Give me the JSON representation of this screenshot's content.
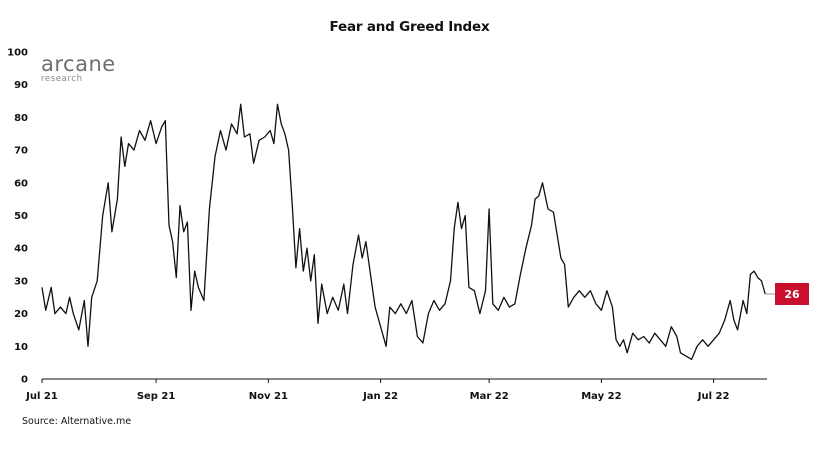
{
  "chart_data": {
    "type": "line",
    "title": "Fear and Greed Index",
    "xlabel": "",
    "ylabel": "",
    "ylim": [
      0,
      100
    ],
    "y_ticks": [
      0,
      10,
      20,
      30,
      40,
      50,
      60,
      70,
      80,
      90,
      100
    ],
    "x_ticks": [
      "Jul 21",
      "Sep 21",
      "Nov 21",
      "Jan 22",
      "Mar 22",
      "May 22",
      "Jul 22"
    ],
    "x_tick_dates": [
      "2021-07-01",
      "2021-09-01",
      "2021-11-01",
      "2022-01-01",
      "2022-03-01",
      "2022-05-01",
      "2022-07-01"
    ],
    "grid": false,
    "legend": "none",
    "line_color": "#111111",
    "last_value_label": "26",
    "badge_color": "#c8102e",
    "series": [
      {
        "points": [
          [
            "2021-07-01",
            28
          ],
          [
            "2021-07-03",
            21
          ],
          [
            "2021-07-06",
            28
          ],
          [
            "2021-07-08",
            20
          ],
          [
            "2021-07-11",
            22
          ],
          [
            "2021-07-14",
            20
          ],
          [
            "2021-07-16",
            25
          ],
          [
            "2021-07-18",
            20
          ],
          [
            "2021-07-21",
            15
          ],
          [
            "2021-07-24",
            24
          ],
          [
            "2021-07-26",
            10
          ],
          [
            "2021-07-28",
            25
          ],
          [
            "2021-07-31",
            30
          ],
          [
            "2021-08-03",
            50
          ],
          [
            "2021-08-06",
            60
          ],
          [
            "2021-08-08",
            45
          ],
          [
            "2021-08-11",
            55
          ],
          [
            "2021-08-13",
            74
          ],
          [
            "2021-08-15",
            65
          ],
          [
            "2021-08-17",
            72
          ],
          [
            "2021-08-20",
            70
          ],
          [
            "2021-08-23",
            76
          ],
          [
            "2021-08-26",
            73
          ],
          [
            "2021-08-29",
            79
          ],
          [
            "2021-09-01",
            72
          ],
          [
            "2021-09-04",
            77
          ],
          [
            "2021-09-06",
            79
          ],
          [
            "2021-09-08",
            47
          ],
          [
            "2021-09-10",
            42
          ],
          [
            "2021-09-12",
            31
          ],
          [
            "2021-09-14",
            53
          ],
          [
            "2021-09-16",
            45
          ],
          [
            "2021-09-18",
            48
          ],
          [
            "2021-09-20",
            21
          ],
          [
            "2021-09-22",
            33
          ],
          [
            "2021-09-24",
            28
          ],
          [
            "2021-09-27",
            24
          ],
          [
            "2021-09-30",
            52
          ],
          [
            "2021-10-03",
            68
          ],
          [
            "2021-10-06",
            76
          ],
          [
            "2021-10-09",
            70
          ],
          [
            "2021-10-12",
            78
          ],
          [
            "2021-10-15",
            75
          ],
          [
            "2021-10-17",
            84
          ],
          [
            "2021-10-19",
            74
          ],
          [
            "2021-10-22",
            75
          ],
          [
            "2021-10-24",
            66
          ],
          [
            "2021-10-27",
            73
          ],
          [
            "2021-10-30",
            74
          ],
          [
            "2021-11-02",
            76
          ],
          [
            "2021-11-04",
            72
          ],
          [
            "2021-11-06",
            84
          ],
          [
            "2021-11-08",
            78
          ],
          [
            "2021-11-10",
            75
          ],
          [
            "2021-11-12",
            70
          ],
          [
            "2021-11-14",
            53
          ],
          [
            "2021-11-16",
            34
          ],
          [
            "2021-11-18",
            46
          ],
          [
            "2021-11-20",
            33
          ],
          [
            "2021-11-22",
            40
          ],
          [
            "2021-11-24",
            30
          ],
          [
            "2021-11-26",
            38
          ],
          [
            "2021-11-28",
            17
          ],
          [
            "2021-11-30",
            29
          ],
          [
            "2021-12-03",
            20
          ],
          [
            "2021-12-06",
            25
          ],
          [
            "2021-12-09",
            21
          ],
          [
            "2021-12-12",
            29
          ],
          [
            "2021-12-14",
            20
          ],
          [
            "2021-12-17",
            35
          ],
          [
            "2021-12-20",
            44
          ],
          [
            "2021-12-22",
            37
          ],
          [
            "2021-12-24",
            42
          ],
          [
            "2021-12-27",
            30
          ],
          [
            "2021-12-29",
            22
          ],
          [
            "2022-01-01",
            16
          ],
          [
            "2022-01-04",
            10
          ],
          [
            "2022-01-06",
            22
          ],
          [
            "2022-01-09",
            20
          ],
          [
            "2022-01-12",
            23
          ],
          [
            "2022-01-15",
            20
          ],
          [
            "2022-01-18",
            24
          ],
          [
            "2022-01-21",
            13
          ],
          [
            "2022-01-24",
            11
          ],
          [
            "2022-01-27",
            20
          ],
          [
            "2022-01-30",
            24
          ],
          [
            "2022-02-02",
            21
          ],
          [
            "2022-02-05",
            23
          ],
          [
            "2022-02-08",
            30
          ],
          [
            "2022-02-10",
            46
          ],
          [
            "2022-02-12",
            54
          ],
          [
            "2022-02-14",
            46
          ],
          [
            "2022-02-16",
            50
          ],
          [
            "2022-02-18",
            28
          ],
          [
            "2022-02-21",
            27
          ],
          [
            "2022-02-24",
            20
          ],
          [
            "2022-02-27",
            27
          ],
          [
            "2022-03-01",
            52
          ],
          [
            "2022-03-03",
            23
          ],
          [
            "2022-03-06",
            21
          ],
          [
            "2022-03-09",
            25
          ],
          [
            "2022-03-12",
            22
          ],
          [
            "2022-03-15",
            23
          ],
          [
            "2022-03-18",
            32
          ],
          [
            "2022-03-21",
            40
          ],
          [
            "2022-03-24",
            47
          ],
          [
            "2022-03-26",
            55
          ],
          [
            "2022-03-28",
            56
          ],
          [
            "2022-03-30",
            60
          ],
          [
            "2022-04-02",
            52
          ],
          [
            "2022-04-05",
            51
          ],
          [
            "2022-04-07",
            44
          ],
          [
            "2022-04-09",
            37
          ],
          [
            "2022-04-11",
            35
          ],
          [
            "2022-04-13",
            22
          ],
          [
            "2022-04-16",
            25
          ],
          [
            "2022-04-19",
            27
          ],
          [
            "2022-04-22",
            25
          ],
          [
            "2022-04-25",
            27
          ],
          [
            "2022-04-28",
            23
          ],
          [
            "2022-05-01",
            21
          ],
          [
            "2022-05-04",
            27
          ],
          [
            "2022-05-07",
            22
          ],
          [
            "2022-05-09",
            12
          ],
          [
            "2022-05-11",
            10
          ],
          [
            "2022-05-13",
            12
          ],
          [
            "2022-05-15",
            8
          ],
          [
            "2022-05-18",
            14
          ],
          [
            "2022-05-21",
            12
          ],
          [
            "2022-05-24",
            13
          ],
          [
            "2022-05-27",
            11
          ],
          [
            "2022-05-30",
            14
          ],
          [
            "2022-06-02",
            12
          ],
          [
            "2022-06-05",
            10
          ],
          [
            "2022-06-08",
            16
          ],
          [
            "2022-06-11",
            13
          ],
          [
            "2022-06-13",
            8
          ],
          [
            "2022-06-16",
            7
          ],
          [
            "2022-06-19",
            6
          ],
          [
            "2022-06-22",
            10
          ],
          [
            "2022-06-25",
            12
          ],
          [
            "2022-06-28",
            10
          ],
          [
            "2022-07-01",
            12
          ],
          [
            "2022-07-04",
            14
          ],
          [
            "2022-07-07",
            18
          ],
          [
            "2022-07-10",
            24
          ],
          [
            "2022-07-12",
            18
          ],
          [
            "2022-07-14",
            15
          ],
          [
            "2022-07-17",
            24
          ],
          [
            "2022-07-19",
            20
          ],
          [
            "2022-07-21",
            32
          ],
          [
            "2022-07-23",
            33
          ],
          [
            "2022-07-25",
            31
          ],
          [
            "2022-07-27",
            30
          ],
          [
            "2022-07-29",
            26
          ]
        ]
      }
    ]
  },
  "logo": {
    "main": "arcane",
    "sub": "research"
  },
  "source": "Source: Alternative.me"
}
